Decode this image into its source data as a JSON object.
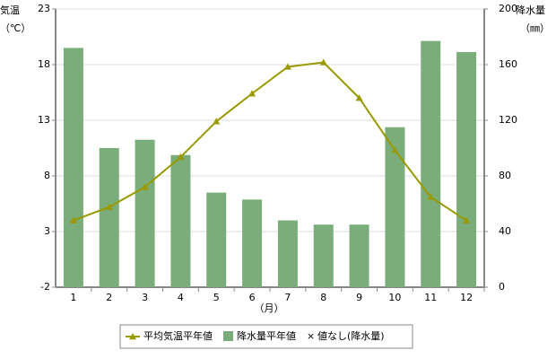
{
  "chart_data": {
    "type": "combo",
    "categories": [
      "1",
      "2",
      "3",
      "4",
      "5",
      "6",
      "7",
      "8",
      "9",
      "10",
      "11",
      "12"
    ],
    "x_label": "（月）",
    "y_label": [
      "気温",
      "（℃）"
    ],
    "y2_label": [
      "降水量",
      "（㎜）"
    ],
    "ylim": [
      -2,
      23
    ],
    "yticks": [
      -2,
      3,
      8,
      13,
      18,
      23
    ],
    "y2lim": [
      0,
      200
    ],
    "y2ticks": [
      0,
      40,
      80,
      120,
      160,
      200
    ],
    "grid": true,
    "series": [
      {
        "name": "平均気温平年値",
        "type": "line",
        "axis": "y",
        "color": "#999900",
        "values": [
          4.0,
          5.2,
          7.0,
          9.7,
          12.9,
          15.4,
          17.8,
          18.2,
          15.0,
          10.3,
          6.1,
          4.0
        ]
      },
      {
        "name": "降水量平年値",
        "type": "bar",
        "axis": "y2",
        "color": "#7aad7a",
        "values": [
          172,
          100,
          106,
          95,
          68,
          63,
          48,
          45,
          45,
          115,
          177,
          169
        ]
      }
    ],
    "legend_missing": "値なし(降水量)"
  }
}
